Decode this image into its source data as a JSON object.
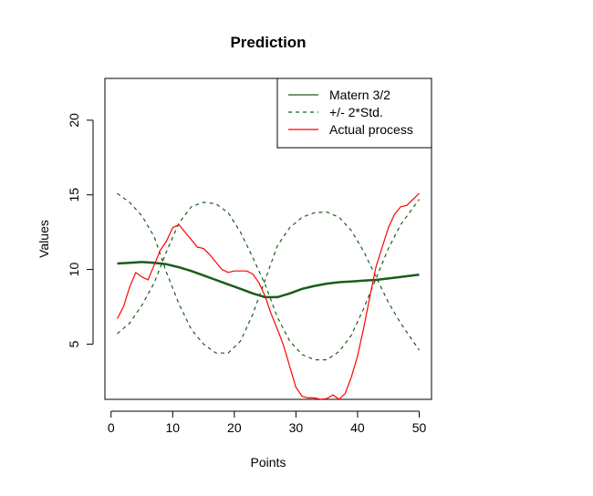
{
  "chart_data": {
    "type": "line",
    "title": "Prediction",
    "xlabel": "Points",
    "ylabel": "Values",
    "xlim": [
      -1.0,
      52.0
    ],
    "ylim": [
      1.3,
      22.8
    ],
    "x_ticks": [
      0,
      10,
      20,
      30,
      40,
      50
    ],
    "y_ticks": [
      5,
      10,
      15,
      20
    ],
    "grid": false,
    "legend_position": "top-right",
    "series": [
      {
        "name": "Matern 3/2",
        "style": "solid",
        "color": "#1a5c1a",
        "x": [
          1,
          3,
          5,
          7,
          9,
          11,
          13,
          15,
          17,
          19,
          21,
          23,
          25,
          27,
          29,
          31,
          33,
          35,
          37,
          39,
          41,
          43,
          45,
          47,
          50
        ],
        "values": [
          10.4,
          10.45,
          10.5,
          10.45,
          10.35,
          10.15,
          9.9,
          9.6,
          9.3,
          9.0,
          8.7,
          8.4,
          8.15,
          8.15,
          8.4,
          8.7,
          8.9,
          9.05,
          9.15,
          9.2,
          9.25,
          9.3,
          9.4,
          9.5,
          9.65
        ]
      },
      {
        "name": "+/- 2*Std.",
        "style": "dashed",
        "color": "#1a5c1a",
        "x": [
          1,
          3,
          5,
          7,
          9,
          11,
          13,
          15,
          17,
          19,
          21,
          23,
          25,
          27,
          29,
          31,
          33,
          35,
          37,
          39,
          41,
          43,
          45,
          47,
          50
        ],
        "values": [
          15.1,
          14.5,
          13.6,
          12.2,
          9.8,
          7.7,
          6.0,
          5.0,
          4.4,
          4.4,
          5.2,
          7.0,
          9.3,
          11.6,
          12.8,
          13.5,
          13.8,
          13.85,
          13.5,
          12.6,
          11.2,
          9.5,
          7.8,
          6.4,
          4.6
        ]
      },
      {
        "name": "",
        "style": "dashed",
        "color": "#1a5c1a",
        "x": [
          1,
          3,
          5,
          7,
          9,
          11,
          13,
          15,
          17,
          19,
          21,
          23,
          25,
          27,
          29,
          31,
          33,
          35,
          37,
          39,
          41,
          43,
          45,
          47,
          50
        ],
        "values": [
          5.7,
          6.4,
          7.6,
          9.1,
          11.2,
          13.1,
          14.2,
          14.5,
          14.4,
          13.8,
          12.5,
          10.8,
          9.0,
          6.8,
          5.2,
          4.3,
          3.95,
          3.95,
          4.5,
          5.6,
          7.4,
          9.4,
          11.4,
          13.0,
          14.7
        ]
      },
      {
        "name": "Actual process",
        "style": "solid",
        "color": "#ff0000",
        "x": [
          1,
          2,
          3,
          4,
          5,
          6,
          7,
          8,
          9,
          10,
          11,
          12,
          13,
          14,
          15,
          16,
          17,
          18,
          19,
          20,
          21,
          22,
          23,
          24,
          25,
          26,
          27,
          28,
          29,
          30,
          31,
          32,
          33,
          34,
          35,
          36,
          37,
          38,
          39,
          40,
          41,
          42,
          43,
          44,
          45,
          46,
          47,
          48,
          49,
          50
        ],
        "values": [
          6.7,
          7.5,
          8.8,
          9.8,
          9.5,
          9.3,
          10.3,
          11.3,
          11.9,
          12.8,
          13.0,
          12.5,
          12.0,
          11.5,
          11.4,
          11.0,
          10.5,
          10.0,
          9.8,
          9.9,
          9.9,
          9.9,
          9.7,
          9.1,
          8.2,
          7.0,
          6.0,
          4.9,
          3.5,
          2.1,
          1.5,
          1.4,
          1.4,
          1.3,
          1.35,
          1.6,
          1.3,
          1.7,
          2.8,
          4.2,
          6.1,
          8.2,
          10.2,
          11.5,
          12.8,
          13.7,
          14.2,
          14.3,
          14.7,
          15.1
        ]
      }
    ],
    "legend": [
      "Matern 3/2",
      "+/- 2*Std.",
      "Actual process"
    ]
  }
}
